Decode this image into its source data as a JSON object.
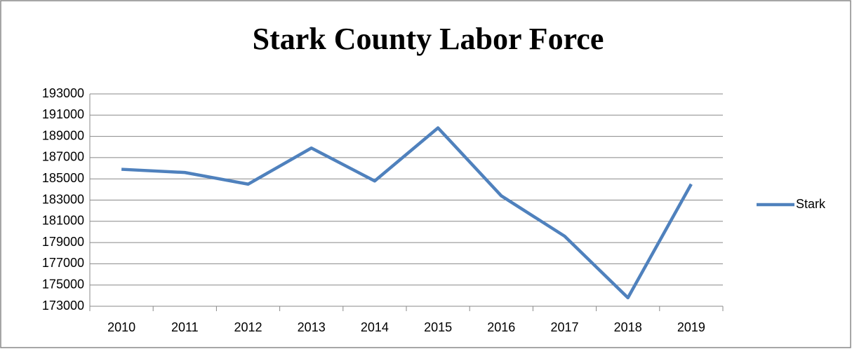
{
  "chart_data": {
    "type": "line",
    "title": "Stark County Labor Force",
    "categories": [
      "2010",
      "2011",
      "2012",
      "2013",
      "2014",
      "2015",
      "2016",
      "2017",
      "2018",
      "2019"
    ],
    "series": [
      {
        "name": "Stark",
        "color": "#4f81bd",
        "values": [
          185900,
          185600,
          184500,
          187900,
          184800,
          189800,
          183400,
          179600,
          173800,
          184500
        ]
      }
    ],
    "ylim": [
      173000,
      193000
    ],
    "yticks": [
      173000,
      175000,
      177000,
      179000,
      181000,
      183000,
      185000,
      187000,
      189000,
      191000,
      193000
    ],
    "grid": true,
    "legend": "right"
  }
}
